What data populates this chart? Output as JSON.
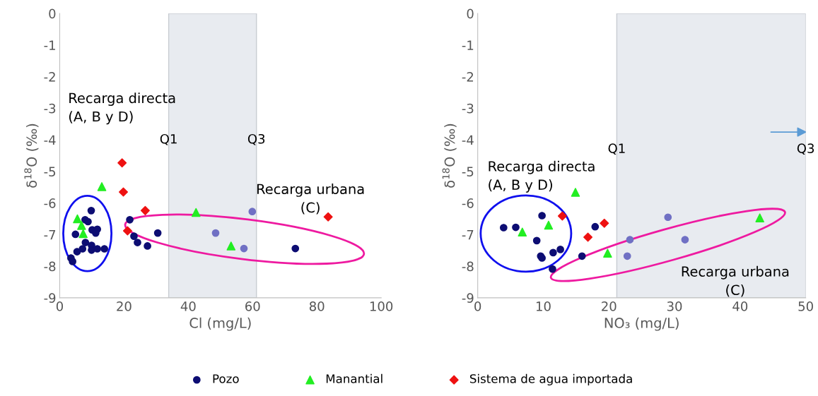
{
  "chart_data": [
    {
      "type": "scatter",
      "xlabel": "Cl (mg/L)",
      "ylabel": "δ$^{18}$O (‰)",
      "xlim": [
        0,
        100
      ],
      "xticks": [
        0,
        20,
        40,
        60,
        80,
        100
      ],
      "ylim": [
        -9,
        0
      ],
      "yticks": [
        -9,
        -8,
        -7,
        -6,
        -5,
        -4,
        -3,
        -2,
        -1,
        0
      ],
      "grid": false,
      "legend": "bottom",
      "series": [
        {
          "name": "Pozo",
          "color": "#0d0d73",
          "marker": "circle",
          "x": [
            9.8,
            7.9,
            8.8,
            4.9,
            10.1,
            11.7,
            11.2,
            8.0,
            9.9,
            9.9,
            11.7,
            13.9,
            7.1,
            5.4,
            3.5,
            4.0,
            21.8,
            23.1,
            24.2,
            27.3,
            30.5,
            73.3
          ],
          "values": [
            -6.24,
            -6.53,
            -6.59,
            -6.99,
            -6.85,
            -6.83,
            -6.95,
            -7.25,
            -7.34,
            -7.49,
            -7.45,
            -7.45,
            -7.45,
            -7.54,
            -7.74,
            -7.85,
            -6.53,
            -7.05,
            -7.25,
            -7.36,
            -6.95,
            -7.44
          ]
        },
        {
          "color": "#7070c4",
          "marker": "circle",
          "x": [
            48.5,
            57.3,
            59.9
          ],
          "values": [
            -6.95,
            -7.44,
            -6.27
          ]
        },
        {
          "name": "Manantial",
          "color": "#22ee22",
          "marker": "triangle",
          "x": [
            13.1,
            5.5,
            6.8,
            7.3,
            42.4,
            53.3
          ],
          "values": [
            -5.48,
            -6.5,
            -6.71,
            -6.97,
            -6.3,
            -7.36
          ]
        },
        {
          "name": "Sistema de agua importada",
          "color": "#ee1111",
          "marker": "diamond",
          "x": [
            19.4,
            19.8,
            26.6,
            21.1,
            83.5
          ],
          "values": [
            -4.73,
            -5.65,
            -6.24,
            -6.88,
            -6.44
          ]
        }
      ],
      "bands": [
        {
          "axis": "x",
          "from": 33.9,
          "to": 61.2,
          "color": "#e8ebf0"
        }
      ],
      "annotations": [
        {
          "text": "Q1",
          "x": 33.9,
          "y": -4.2
        },
        {
          "text": "Q3",
          "x": 61.2,
          "y": -4.2
        },
        "Recarga directa\n(A, B y D)",
        "Recarga urbana\n(C)"
      ]
    },
    {
      "type": "scatter",
      "xlabel": "NO₃ (mg/L)",
      "ylabel": "δ$^{18}$O (‰)",
      "xlim": [
        0,
        50
      ],
      "xticks": [
        0,
        10,
        20,
        30,
        40,
        50
      ],
      "ylim": [
        -9,
        0
      ],
      "yticks": [
        -9,
        -8,
        -7,
        -6,
        -5,
        -4,
        -3,
        -2,
        -1,
        0
      ],
      "grid": false,
      "series": [
        {
          "name": "Pozo",
          "color": "#0d0d73",
          "marker": "circle",
          "x": [
            3.95,
            5.8,
            9.8,
            9.0,
            9.6,
            9.8,
            11.5,
            12.6,
            11.4,
            17.9,
            15.9
          ],
          "values": [
            -6.78,
            -6.77,
            -6.4,
            -7.19,
            -7.68,
            -7.74,
            -7.57,
            -7.47,
            -8.09,
            -6.75,
            -7.68
          ]
        },
        {
          "color": "#7070c4",
          "marker": "circle",
          "x": [
            29.0,
            23.2,
            31.6,
            22.8
          ],
          "values": [
            -6.45,
            -7.16,
            -7.16,
            -7.68
          ]
        },
        {
          "name": "Manantial",
          "color": "#22ee22",
          "marker": "triangle",
          "x": [
            14.9,
            6.8,
            10.8,
            19.8,
            43.0
          ],
          "values": [
            -5.66,
            -6.92,
            -6.7,
            -7.59,
            -6.47
          ]
        },
        {
          "name": "Sistema de agua importada",
          "color": "#ee1111",
          "marker": "diamond",
          "x": [
            12.9,
            19.3,
            16.8
          ],
          "values": [
            -6.41,
            -6.64,
            -7.08
          ]
        }
      ],
      "bands": [
        {
          "axis": "x",
          "from": 21.2,
          "to": 50,
          "color": "#e8ebf0"
        }
      ],
      "annotations": [
        {
          "text": "Q1",
          "x": 21.2,
          "y": -4.5
        },
        {
          "text": "Q3",
          "x": 50,
          "y": -4.5
        },
        "Recarga directa\n(A, B y D)",
        "Recarga urbana\n(C)"
      ]
    }
  ]
}
